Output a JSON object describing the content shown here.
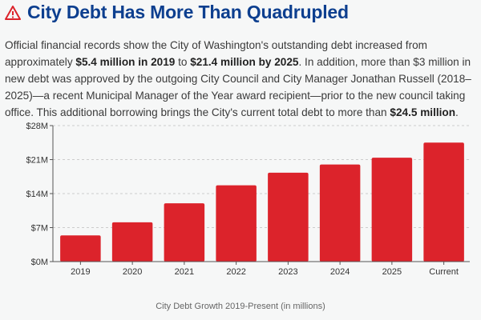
{
  "header": {
    "title": "City Debt Has More Than Quadrupled",
    "icon": "warning-icon"
  },
  "paragraph": {
    "p1": "Official financial records show the City of Washington's outstanding debt increased from approximately ",
    "b1": "$5.4 million in 2019",
    "p2": " to ",
    "b2": "$21.4 million by 2025",
    "p3": ". In addition, more than $3 million in new debt was approved by the outgoing City Council and City Manager Jonathan Russell (2018–2025)—a recent Municipal Manager of the Year award recipient—prior to the new council taking office. This additional borrowing brings the City's current total debt to more than ",
    "b3": "$24.5 million",
    "p4": "."
  },
  "colors": {
    "bar": "#dc232b",
    "title": "#0d3f8f"
  },
  "chart_data": {
    "type": "bar",
    "categories": [
      "2019",
      "2020",
      "2021",
      "2022",
      "2023",
      "2024",
      "2025",
      "Current"
    ],
    "values": [
      5.4,
      8.1,
      12.0,
      15.7,
      18.3,
      20.0,
      21.4,
      24.5
    ],
    "yticks": [
      0,
      7,
      14,
      21,
      28
    ],
    "ytick_labels": [
      "$0M",
      "$7M",
      "$14M",
      "$21M",
      "$28M"
    ],
    "ylim": [
      0,
      28
    ],
    "grid": true,
    "caption": "City Debt Growth 2019-Present (in millions)"
  }
}
